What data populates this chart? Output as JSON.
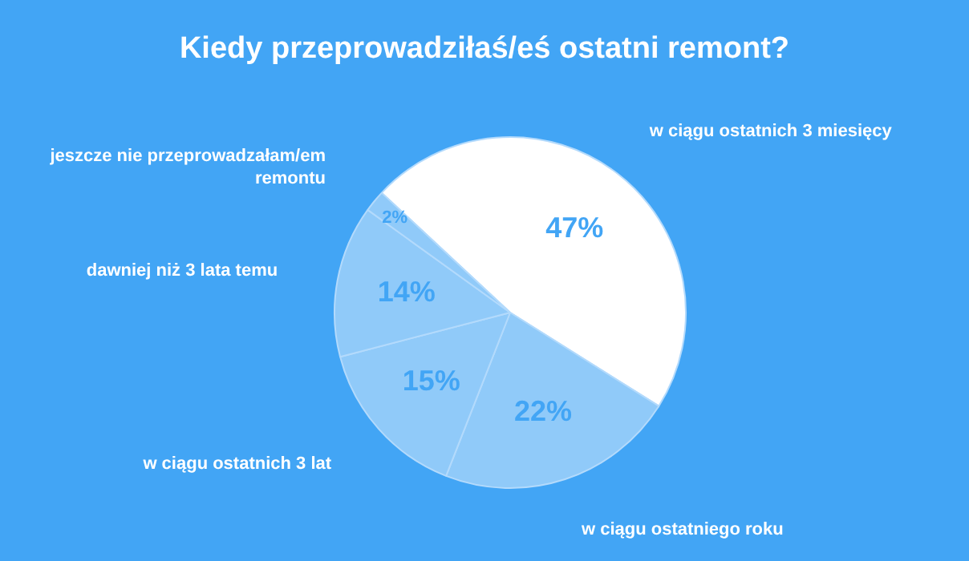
{
  "chart_data": {
    "type": "pie",
    "title": "Kiedy przeprowadziłaś/eś ostatni remont?",
    "categories": [
      "w ciągu ostatnich 3 miesięcy",
      "w ciągu ostatniego roku",
      "w ciągu ostatnich 3 lat",
      "dawniej niż 3 lata temu",
      "jeszcze nie przeprowadzałam/em remontu"
    ],
    "values": [
      47,
      22,
      15,
      14,
      2
    ],
    "value_labels": [
      "47%",
      "22%",
      "15%",
      "14%",
      "2%"
    ],
    "colors": [
      "#ffffff",
      "#90caf9",
      "#90caf9",
      "#90caf9",
      "#90caf9"
    ],
    "legend": false
  }
}
